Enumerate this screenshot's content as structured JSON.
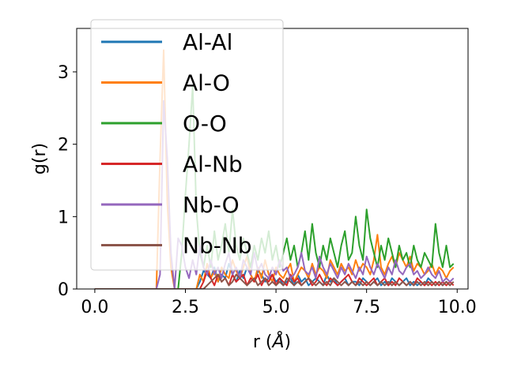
{
  "chart_data": {
    "type": "line",
    "xlabel_base": "r (",
    "xlabel_unit": "Å",
    "xlabel_close": ")",
    "ylabel": "g(r)",
    "xlim": [
      -0.5,
      10.3
    ],
    "ylim": [
      0,
      3.6
    ],
    "xticks": [
      0.0,
      2.5,
      5.0,
      7.5,
      10.0
    ],
    "xtick_labels": [
      "0.0",
      "2.5",
      "5.0",
      "7.5",
      "10.0"
    ],
    "yticks": [
      0,
      1,
      2,
      3
    ],
    "ytick_labels": [
      "0",
      "1",
      "2",
      "3"
    ],
    "grid": false,
    "legend_position": "upper-left",
    "x_start": 0.0,
    "x_step": 0.1,
    "series": [
      {
        "name": "Al-Al",
        "color": "#1f77b4",
        "values": [
          0,
          0,
          0,
          0,
          0,
          0,
          0,
          0,
          0,
          0,
          0,
          0,
          0,
          0,
          0,
          0,
          0,
          0,
          0,
          0,
          0,
          0,
          0,
          0,
          0,
          0,
          0,
          0,
          0,
          0.1,
          0.25,
          0.2,
          0.15,
          0.3,
          0.1,
          0.2,
          0.15,
          0.35,
          0.2,
          0.1,
          0.25,
          0.15,
          0.3,
          0.2,
          0.1,
          0.25,
          0.2,
          0.1,
          0.15,
          0.2,
          0.1,
          0.15,
          0.05,
          0.1,
          0.15,
          0.05,
          0.2,
          0.1,
          0.15,
          0.05,
          0.1,
          0.15,
          0.1,
          0.05,
          0.2,
          0.1,
          0.15,
          0.05,
          0.1,
          0.15,
          0.05,
          0.1,
          0.1,
          0.05,
          0.15,
          0.1,
          0.05,
          0.1,
          0.15,
          0.05,
          0.1,
          0.05,
          0.15,
          0.1,
          0.05,
          0.1,
          0.15,
          0.05,
          0.1,
          0.05,
          0.1,
          0.05,
          0.15,
          0.1,
          0.05,
          0.1,
          0.05,
          0.1,
          0.05
        ]
      },
      {
        "name": "Al-O",
        "color": "#ff7f0e",
        "values": [
          0,
          0,
          0,
          0,
          0,
          0,
          0,
          0,
          0,
          0,
          0,
          0,
          0,
          0,
          0,
          0,
          0,
          0,
          1.8,
          3.3,
          1.2,
          0.3,
          0,
          0,
          0,
          0,
          0,
          0,
          0,
          0.2,
          0.1,
          0.35,
          0.15,
          0.25,
          0.1,
          0.3,
          0.2,
          0.15,
          0.4,
          0.25,
          0.15,
          0.3,
          0.45,
          0.2,
          0.1,
          0.3,
          0.15,
          0.4,
          0.2,
          0.1,
          0.3,
          0.2,
          0.15,
          0.25,
          0.35,
          0.1,
          0.2,
          0.3,
          0.25,
          0.15,
          0.35,
          0.2,
          0.3,
          0.25,
          0.15,
          0.4,
          0.3,
          0.2,
          0.35,
          0.25,
          0.3,
          0.2,
          0.4,
          0.25,
          0.35,
          0.3,
          0.2,
          0.4,
          0.75,
          0.3,
          0.2,
          0.35,
          0.45,
          0.3,
          0.5,
          0.4,
          0.3,
          0.45,
          0.25,
          0.35,
          0.3,
          0.2,
          0.25,
          0.35,
          0.2,
          0.3,
          0.25,
          0.15,
          0.25,
          0.3
        ]
      },
      {
        "name": "O-O",
        "color": "#2ca02c",
        "values": [
          0,
          0,
          0,
          0,
          0,
          0,
          0,
          0,
          0,
          0,
          0,
          0,
          0,
          0,
          0,
          0,
          0,
          0,
          0,
          0,
          0,
          0,
          0,
          0,
          0.5,
          1.3,
          2.0,
          2.8,
          1.1,
          0.5,
          0.3,
          0.6,
          0.3,
          0.8,
          0.4,
          0.6,
          0.9,
          0.5,
          1.1,
          0.6,
          0.4,
          0.7,
          0.5,
          0.3,
          0.6,
          0.4,
          0.7,
          0.5,
          0.8,
          0.4,
          0.6,
          0.3,
          0.5,
          0.7,
          0.4,
          0.6,
          0.3,
          0.5,
          0.8,
          0.4,
          0.9,
          0.5,
          0.3,
          0.6,
          0.4,
          0.7,
          0.5,
          0.3,
          0.6,
          0.8,
          0.4,
          0.5,
          1.0,
          0.6,
          0.4,
          1.1,
          0.7,
          0.5,
          0.3,
          0.6,
          0.4,
          0.7,
          0.5,
          0.3,
          0.6,
          0.4,
          0.5,
          0.3,
          0.6,
          0.4,
          0.3,
          0.5,
          0.4,
          0.3,
          0.9,
          0.5,
          0.3,
          0.6,
          0.3,
          0.35
        ]
      },
      {
        "name": "Al-Nb",
        "color": "#d62728",
        "values": [
          0,
          0,
          0,
          0,
          0,
          0,
          0,
          0,
          0,
          0,
          0,
          0,
          0,
          0,
          0,
          0,
          0,
          0,
          0,
          0,
          0,
          0,
          0,
          0,
          0,
          0,
          0,
          0,
          0,
          0,
          0.1,
          0.25,
          0.15,
          0.05,
          0.2,
          0.1,
          0.15,
          0.05,
          0.2,
          0.1,
          0.15,
          0.2,
          0.05,
          0.15,
          0.1,
          0.2,
          0.05,
          0.15,
          0.1,
          0.2,
          0.05,
          0.15,
          0.1,
          0.05,
          0.2,
          0.1,
          0.15,
          0.05,
          0.1,
          0.15,
          0.05,
          0.1,
          0.2,
          0.1,
          0.05,
          0.15,
          0.1,
          0.05,
          0.1,
          0.15,
          0.2,
          0.1,
          0.05,
          0.15,
          0.1,
          0.05,
          0.1,
          0.15,
          0.05,
          0.1,
          0.15,
          0.05,
          0.1,
          0.05,
          0.15,
          0.1,
          0.05,
          0.1,
          0.05,
          0.15,
          0.1,
          0.05,
          0.1,
          0.05,
          0.1,
          0.05,
          0.1,
          0.05,
          0.1,
          0.05
        ]
      },
      {
        "name": "Nb-O",
        "color": "#9467bd",
        "values": [
          0,
          0,
          0,
          0,
          0,
          0,
          0,
          0,
          0,
          0,
          0,
          0,
          0,
          0,
          0,
          0,
          0,
          0,
          0.2,
          2.6,
          1.8,
          0.5,
          0,
          0.7,
          0.6,
          0.3,
          0.15,
          0.4,
          0.2,
          0.6,
          0.3,
          0.2,
          0.4,
          0.2,
          0.3,
          0.15,
          0.35,
          0.5,
          0.2,
          0.3,
          0.15,
          0.4,
          0.3,
          0.2,
          0.5,
          0.25,
          0.35,
          0.2,
          0.15,
          0.3,
          0.2,
          0.4,
          0.25,
          0.3,
          0.15,
          0.2,
          0.3,
          0.5,
          0.25,
          0.2,
          0.3,
          0.15,
          0.45,
          0.3,
          0.2,
          0.35,
          0.25,
          0.15,
          0.3,
          0.2,
          0.35,
          0.25,
          0.15,
          0.3,
          0.2,
          0.45,
          0.3,
          0.2,
          0.35,
          0.25,
          0.15,
          0.3,
          0.2,
          0.4,
          0.25,
          0.2,
          0.3,
          0.35,
          0.2,
          0.25,
          0.15,
          0.2,
          0.3,
          0.2,
          0.15,
          0.25,
          0.1,
          0.15,
          0.1,
          0.15
        ]
      },
      {
        "name": "Nb-Nb",
        "color": "#8c564b",
        "values": [
          0,
          0,
          0,
          0,
          0,
          0,
          0,
          0,
          0,
          0,
          0,
          0,
          0,
          0,
          0,
          0,
          0,
          0,
          0,
          0,
          0,
          0,
          0,
          0,
          0,
          0,
          0,
          0,
          0,
          0,
          0,
          0.05,
          0.1,
          0.15,
          0.2,
          0.1,
          0.15,
          0.05,
          0.1,
          0.2,
          0.15,
          0.1,
          0.05,
          0.1,
          0.15,
          0.05,
          0.1,
          0.15,
          0.05,
          0.1,
          0.05,
          0.1,
          0.05,
          0.15,
          0.1,
          0.05,
          0.1,
          0.05,
          0.1,
          0.15,
          0.1,
          0.05,
          0.1,
          0.05,
          0.1,
          0.05,
          0.15,
          0.1,
          0.05,
          0.1,
          0.05,
          0.1,
          0.05,
          0.1,
          0.05,
          0.1,
          0.05,
          0.1,
          0.05,
          0.1,
          0.05,
          0.1,
          0.05,
          0.1,
          0.05,
          0.1,
          0.05,
          0.1,
          0.05,
          0.1,
          0.05,
          0.1,
          0.05,
          0.1,
          0.05,
          0.1,
          0.05,
          0.1,
          0.05,
          0.1
        ]
      }
    ]
  }
}
